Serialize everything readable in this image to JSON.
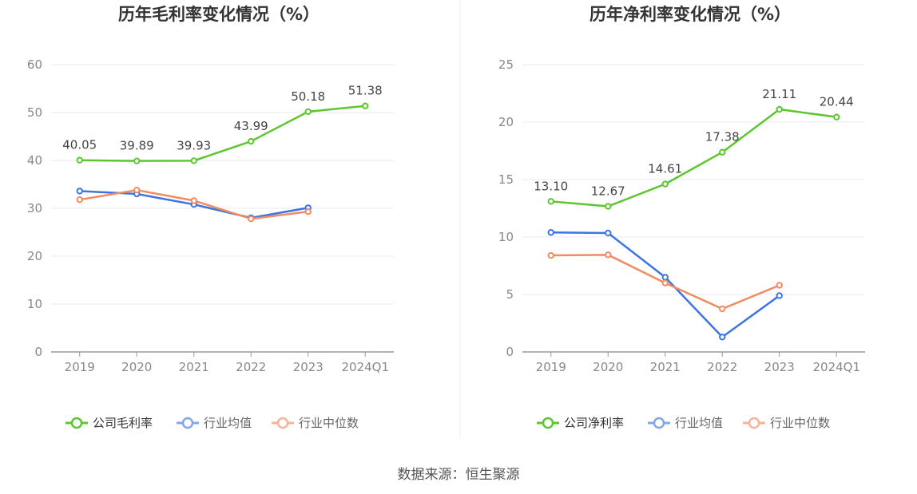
{
  "source": "数据来源：恒生聚源",
  "chart_data": [
    {
      "type": "line",
      "title": "历年毛利率变化情况（%）",
      "categories": [
        "2019",
        "2020",
        "2021",
        "2022",
        "2023",
        "2024Q1"
      ],
      "ylim": [
        0,
        60
      ],
      "yticks": [
        0,
        10,
        20,
        30,
        40,
        50,
        60
      ],
      "grid": true,
      "legend_position": "bottom",
      "series": [
        {
          "name": "公司毛利率",
          "color": "#5cc630",
          "labels": true,
          "values": [
            40.05,
            39.89,
            39.93,
            43.99,
            50.18,
            51.38
          ]
        },
        {
          "name": "行业均值",
          "color": "#3e74e0",
          "labels": false,
          "values": [
            33.6,
            33.0,
            30.8,
            28.0,
            30.1,
            null
          ]
        },
        {
          "name": "行业中位数",
          "color": "#f28a62",
          "labels": false,
          "values": [
            31.8,
            33.8,
            31.6,
            27.8,
            29.3,
            null
          ]
        }
      ]
    },
    {
      "type": "line",
      "title": "历年净利率变化情况（%）",
      "categories": [
        "2019",
        "2020",
        "2021",
        "2022",
        "2023",
        "2024Q1"
      ],
      "ylim": [
        0,
        25
      ],
      "yticks": [
        0,
        5,
        10,
        15,
        20,
        25
      ],
      "grid": true,
      "legend_position": "bottom",
      "series": [
        {
          "name": "公司净利率",
          "color": "#5cc630",
          "labels": true,
          "values": [
            13.1,
            12.67,
            14.61,
            17.38,
            21.11,
            20.44
          ]
        },
        {
          "name": "行业均值",
          "color": "#3e74e0",
          "labels": false,
          "values": [
            10.4,
            10.35,
            6.5,
            1.3,
            4.9,
            null
          ]
        },
        {
          "name": "行业中位数",
          "color": "#f28a62",
          "labels": false,
          "values": [
            8.4,
            8.45,
            6.0,
            3.75,
            5.8,
            null
          ]
        }
      ]
    }
  ]
}
